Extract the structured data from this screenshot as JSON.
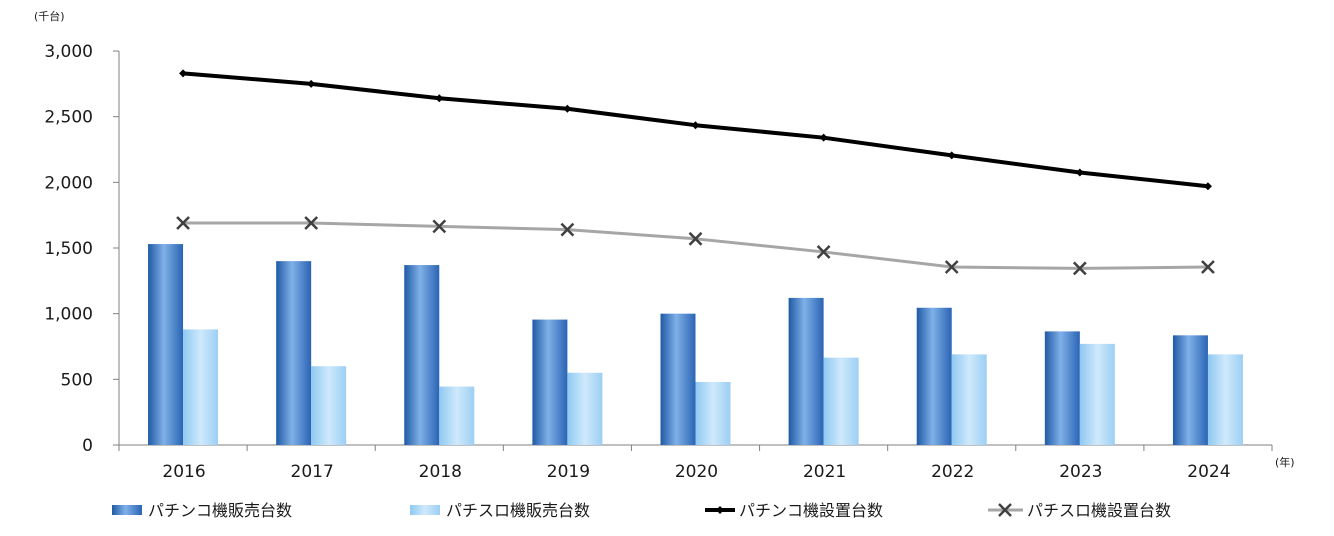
{
  "chart_data": {
    "type": "bar",
    "categories": [
      "2016",
      "2017",
      "2018",
      "2019",
      "2020",
      "2021",
      "2022",
      "2023",
      "2024"
    ],
    "y_unit_label": "(千台)",
    "x_unit_label": "(年)",
    "ylim": [
      0,
      3000
    ],
    "y_ticks": [
      0,
      500,
      1000,
      1500,
      2000,
      2500,
      3000
    ],
    "y_tick_labels": [
      "0",
      "500",
      "1,000",
      "1,500",
      "2,000",
      "2,500",
      "3,000"
    ],
    "grid": false,
    "legend_position": "bottom",
    "series": [
      {
        "name": "パチンコ機販売台数",
        "type": "bar",
        "color": "#3f78c3",
        "values": [
          1530,
          1400,
          1370,
          955,
          1000,
          1120,
          1045,
          865,
          835
        ]
      },
      {
        "name": "パチスロ機販売台数",
        "type": "bar",
        "color": "#a9d6f5",
        "values": [
          880,
          600,
          445,
          550,
          480,
          665,
          690,
          770,
          690
        ]
      },
      {
        "name": "パチンコ機設置台数",
        "type": "line",
        "marker": "diamond",
        "color": "#000000",
        "values": [
          2830,
          2750,
          2640,
          2560,
          2435,
          2340,
          2205,
          2075,
          1970
        ]
      },
      {
        "name": "パチスロ機設置台数",
        "type": "line",
        "marker": "x",
        "color": "#a6a6a6",
        "values": [
          1690,
          1690,
          1665,
          1640,
          1570,
          1470,
          1355,
          1345,
          1355
        ]
      }
    ]
  }
}
